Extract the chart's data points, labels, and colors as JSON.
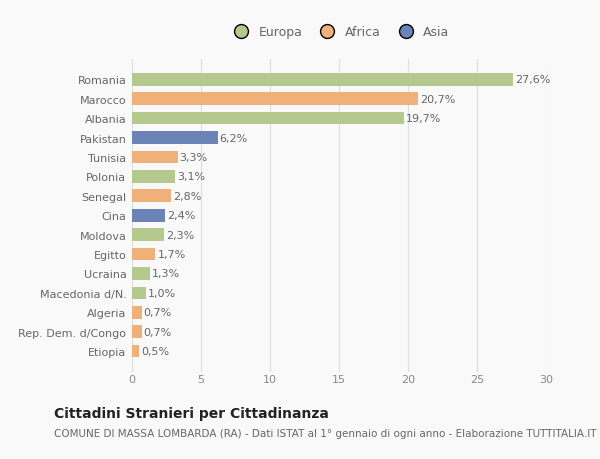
{
  "categories": [
    "Romania",
    "Marocco",
    "Albania",
    "Pakistan",
    "Tunisia",
    "Polonia",
    "Senegal",
    "Cina",
    "Moldova",
    "Egitto",
    "Ucraina",
    "Macedonia d/N.",
    "Algeria",
    "Rep. Dem. d/Congo",
    "Etiopia"
  ],
  "values": [
    27.6,
    20.7,
    19.7,
    6.2,
    3.3,
    3.1,
    2.8,
    2.4,
    2.3,
    1.7,
    1.3,
    1.0,
    0.7,
    0.7,
    0.5
  ],
  "labels": [
    "27,6%",
    "20,7%",
    "19,7%",
    "6,2%",
    "3,3%",
    "3,1%",
    "2,8%",
    "2,4%",
    "2,3%",
    "1,7%",
    "1,3%",
    "1,0%",
    "0,7%",
    "0,7%",
    "0,5%"
  ],
  "continents": [
    "Europa",
    "Africa",
    "Europa",
    "Asia",
    "Africa",
    "Europa",
    "Africa",
    "Asia",
    "Europa",
    "Africa",
    "Europa",
    "Europa",
    "Africa",
    "Africa",
    "Africa"
  ],
  "colors": {
    "Europa": "#b5c98e",
    "Africa": "#f0b07a",
    "Asia": "#6b84b8"
  },
  "legend_labels": [
    "Europa",
    "Africa",
    "Asia"
  ],
  "legend_colors": [
    "#b5c98e",
    "#f0b07a",
    "#6b84b8"
  ],
  "title": "Cittadini Stranieri per Cittadinanza",
  "subtitle": "COMUNE DI MASSA LOMBARDA (RA) - Dati ISTAT al 1° gennaio di ogni anno - Elaborazione TUTTITALIA.IT",
  "xlim": [
    0,
    30
  ],
  "xticks": [
    0,
    5,
    10,
    15,
    20,
    25,
    30
  ],
  "background_color": "#f9f9f9",
  "grid_color": "#dddddd",
  "bar_height": 0.65,
  "title_fontsize": 10,
  "subtitle_fontsize": 7.5,
  "tick_fontsize": 8,
  "label_fontsize": 8
}
